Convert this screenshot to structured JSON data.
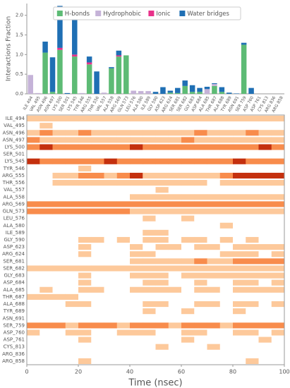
{
  "chart_data": [
    {
      "type": "bar",
      "stacked": true,
      "ylabel": "Interactions Fraction",
      "legend": "upper right",
      "ylim": [
        0,
        2.3
      ],
      "yticks": [
        {
          "value": 0,
          "label": "0.0"
        },
        {
          "value": 0.5,
          "label": "0.5"
        },
        {
          "value": 1,
          "label": "1.0"
        },
        {
          "value": 1.5,
          "label": "1.5"
        },
        {
          "value": 2,
          "label": "2.0"
        }
      ],
      "categories": [
        "ILE 494",
        "VAL 495",
        "ASN 496",
        "ASN 497",
        "LYS 500",
        "SER 501",
        "LYS 545",
        "TYR 546",
        "ARG 555",
        "THR 556",
        "VAL 557",
        "ALA 558",
        "ARG 569",
        "GLN 573",
        "LEU 576",
        "ALA 580",
        "ILE 589",
        "GLY 590",
        "ASP 623",
        "ARG 624",
        "SER 681",
        "SER 682",
        "GLY 683",
        "ASP 684",
        "ALA 685",
        "THR 687",
        "ALA 688",
        "TYR 689",
        "ASN 691",
        "SER 759",
        "ASP 760",
        "ASP 761",
        "CYS 813",
        "ARG 836",
        "ARG 858"
      ],
      "series": [
        {
          "name": "H-bonds",
          "color": "#5dbb75",
          "values": [
            0,
            0,
            1.05,
            0.05,
            1.12,
            0,
            0.95,
            0,
            0.75,
            0,
            0,
            0.65,
            0.95,
            0.98,
            0,
            0,
            0,
            0,
            0,
            0.03,
            0.02,
            0.2,
            0.05,
            0.05,
            0,
            0.2,
            0.05,
            0,
            0,
            1.25,
            0,
            0,
            0,
            0,
            0
          ]
        },
        {
          "name": "Hydrophobic",
          "color": "#c5b3d8",
          "values": [
            0.48,
            0.02,
            0,
            0,
            0,
            0,
            0,
            0.02,
            0,
            0,
            0.03,
            0,
            0,
            0,
            0.08,
            0.07,
            0.07,
            0,
            0,
            0,
            0,
            0,
            0,
            0,
            0.12,
            0.05,
            0,
            0,
            0,
            0,
            0,
            0,
            0,
            0,
            0
          ]
        },
        {
          "name": "Ionic",
          "color": "#e8318a",
          "values": [
            0,
            0,
            0,
            0,
            0.05,
            0,
            0.05,
            0,
            0.05,
            0,
            0,
            0,
            0.03,
            0,
            0,
            0,
            0,
            0,
            0,
            0,
            0,
            0,
            0,
            0,
            0,
            0,
            0,
            0,
            0,
            0,
            0,
            0,
            0,
            0,
            0
          ]
        },
        {
          "name": "Water bridges",
          "color": "#1f6fb4",
          "values": [
            0,
            0,
            0.28,
            0.88,
            1.07,
            0.02,
            0.93,
            0,
            0.15,
            0.57,
            0,
            0.03,
            0.12,
            0,
            0,
            0,
            0,
            0.05,
            0.17,
            0.05,
            0.13,
            0.14,
            0.17,
            0.1,
            0.06,
            0.02,
            0.12,
            0.03,
            0.01,
            0.05,
            0.15,
            0,
            0,
            0,
            0
          ]
        }
      ]
    },
    {
      "type": "heatmap",
      "xlabel": "Time (nsec)",
      "xlim": [
        0,
        100
      ],
      "xticks": [
        0,
        20,
        40,
        60,
        80,
        100
      ],
      "colors": [
        "#ffffff",
        "#fdc99b",
        "#f88c4c",
        "#c4300e"
      ],
      "bins": [
        0,
        5,
        10,
        15,
        20,
        25,
        30,
        35,
        40,
        45,
        50,
        55,
        60,
        65,
        70,
        75,
        80,
        85,
        90,
        95,
        100
      ],
      "rows": [
        "ILE_494",
        "VAL_495",
        "ASN_496",
        "ASN_497",
        "LYS_500",
        "SER_501",
        "LYS_545",
        "TYR_546",
        "ARG_555",
        "THR_556",
        "VAL_557",
        "ALA_558",
        "ARG_569",
        "GLN_573",
        "LEU_576",
        "ALA_580",
        "ILE_589",
        "GLY_590",
        "ASP_623",
        "ARG_624",
        "SER_681",
        "SER_682",
        "GLY_683",
        "ASP_684",
        "ALA_685",
        "THR_687",
        "ALA_688",
        "TYR_689",
        "ASN_691",
        "SER_759",
        "ASP_760",
        "ASP_761",
        "CYS_813",
        "ARG_836",
        "ARG_858"
      ],
      "values": [
        [
          1,
          1,
          1,
          1,
          1,
          1,
          1,
          1,
          1,
          1,
          1,
          1,
          1,
          1,
          1,
          1,
          1,
          1,
          1,
          1
        ],
        [
          0,
          1,
          0,
          0,
          0,
          0,
          0,
          0,
          0,
          0,
          0,
          0,
          0,
          0,
          0,
          0,
          0,
          0,
          0,
          0
        ],
        [
          1,
          2,
          1,
          1,
          2,
          1,
          1,
          1,
          1,
          1,
          1,
          1,
          1,
          2,
          1,
          1,
          1,
          2,
          1,
          1
        ],
        [
          2,
          1,
          1,
          1,
          1,
          1,
          1,
          1,
          1,
          1,
          1,
          1,
          2,
          1,
          1,
          1,
          1,
          1,
          1,
          1
        ],
        [
          2,
          3,
          2,
          2,
          2,
          2,
          2,
          2,
          3,
          2,
          2,
          2,
          2,
          2,
          2,
          2,
          2,
          2,
          3,
          2
        ],
        [
          0,
          0,
          0,
          0,
          0,
          0,
          0,
          0,
          0,
          0,
          0,
          0,
          0,
          0,
          0,
          0,
          0,
          0,
          0,
          0
        ],
        [
          3,
          2,
          2,
          2,
          2,
          2,
          3,
          2,
          2,
          2,
          2,
          2,
          2,
          2,
          2,
          2,
          3,
          2,
          2,
          2
        ],
        [
          0,
          0,
          0,
          0,
          1,
          0,
          0,
          0,
          0,
          0,
          0,
          0,
          0,
          0,
          0,
          0,
          0,
          0,
          0,
          0
        ],
        [
          0,
          0,
          1,
          1,
          2,
          2,
          1,
          2,
          3,
          1,
          1,
          1,
          1,
          1,
          1,
          2,
          3,
          3,
          3,
          3
        ],
        [
          0,
          0,
          1,
          1,
          1,
          1,
          1,
          1,
          1,
          1,
          1,
          1,
          1,
          1,
          0,
          1,
          1,
          1,
          1,
          1
        ],
        [
          0,
          0,
          0,
          0,
          0,
          0,
          0,
          0,
          0,
          0,
          1,
          0,
          0,
          0,
          0,
          0,
          0,
          0,
          0,
          0
        ],
        [
          0,
          0,
          0,
          0,
          0,
          0,
          0,
          0,
          1,
          1,
          1,
          1,
          1,
          1,
          1,
          1,
          1,
          1,
          1,
          1
        ],
        [
          2,
          2,
          2,
          2,
          2,
          2,
          2,
          2,
          2,
          2,
          2,
          2,
          2,
          2,
          2,
          2,
          2,
          2,
          2,
          2
        ],
        [
          2,
          2,
          2,
          2,
          2,
          2,
          2,
          2,
          1,
          1,
          1,
          1,
          1,
          1,
          1,
          1,
          1,
          1,
          1,
          1
        ],
        [
          0,
          0,
          0,
          0,
          0,
          0,
          0,
          0,
          0,
          1,
          0,
          0,
          1,
          0,
          0,
          0,
          0,
          0,
          0,
          0
        ],
        [
          0,
          0,
          0,
          0,
          0,
          0,
          0,
          0,
          0,
          0,
          0,
          0,
          0,
          0,
          0,
          1,
          0,
          0,
          0,
          0
        ],
        [
          0,
          0,
          0,
          0,
          0,
          0,
          0,
          0,
          0,
          1,
          1,
          0,
          0,
          0,
          0,
          0,
          0,
          0,
          0,
          0
        ],
        [
          0,
          0,
          0,
          0,
          1,
          1,
          0,
          1,
          0,
          1,
          1,
          0,
          1,
          1,
          0,
          1,
          0,
          1,
          0,
          0
        ],
        [
          0,
          0,
          0,
          0,
          1,
          0,
          0,
          0,
          1,
          0,
          1,
          1,
          0,
          1,
          1,
          0,
          1,
          1,
          1,
          1
        ],
        [
          0,
          0,
          0,
          0,
          1,
          0,
          0,
          0,
          1,
          1,
          0,
          0,
          0,
          0,
          0,
          1,
          1,
          1,
          0,
          1
        ],
        [
          0,
          0,
          0,
          0,
          0,
          0,
          0,
          0,
          1,
          1,
          1,
          1,
          1,
          2,
          1,
          1,
          2,
          2,
          2,
          2
        ],
        [
          1,
          1,
          1,
          1,
          1,
          1,
          1,
          1,
          1,
          1,
          1,
          1,
          1,
          1,
          1,
          1,
          1,
          1,
          1,
          1
        ],
        [
          0,
          0,
          0,
          0,
          1,
          0,
          0,
          0,
          1,
          1,
          1,
          0,
          1,
          1,
          1,
          1,
          1,
          1,
          1,
          1
        ],
        [
          0,
          0,
          0,
          0,
          1,
          0,
          0,
          0,
          0,
          1,
          1,
          0,
          0,
          1,
          0,
          0,
          1,
          1,
          0,
          1
        ],
        [
          0,
          1,
          0,
          0,
          1,
          1,
          0,
          0,
          1,
          1,
          1,
          1,
          0,
          1,
          1,
          0,
          1,
          1,
          1,
          1
        ],
        [
          1,
          1,
          1,
          1,
          0,
          0,
          0,
          0,
          0,
          0,
          0,
          0,
          0,
          0,
          0,
          0,
          0,
          0,
          0,
          0
        ],
        [
          0,
          0,
          0,
          1,
          1,
          0,
          0,
          0,
          0,
          1,
          1,
          0,
          0,
          1,
          1,
          0,
          1,
          1,
          0,
          1
        ],
        [
          0,
          0,
          0,
          0,
          0,
          0,
          0,
          0,
          0,
          1,
          0,
          0,
          1,
          0,
          0,
          0,
          1,
          0,
          0,
          0
        ],
        [
          0,
          0,
          0,
          0,
          0,
          0,
          0,
          0,
          0,
          0,
          0,
          0,
          0,
          0,
          0,
          0,
          0,
          0,
          0,
          0
        ],
        [
          2,
          2,
          2,
          1,
          2,
          2,
          2,
          1,
          2,
          2,
          2,
          1,
          2,
          2,
          2,
          1,
          2,
          2,
          2,
          2
        ],
        [
          1,
          0,
          0,
          1,
          1,
          0,
          0,
          1,
          1,
          1,
          0,
          0,
          1,
          1,
          0,
          0,
          1,
          1,
          0,
          1
        ],
        [
          0,
          0,
          0,
          0,
          1,
          0,
          0,
          0,
          0,
          0,
          0,
          0,
          1,
          0,
          0,
          0,
          0,
          0,
          1,
          0
        ],
        [
          0,
          0,
          0,
          0,
          0,
          0,
          0,
          0,
          0,
          0,
          1,
          0,
          0,
          0,
          1,
          0,
          0,
          0,
          0,
          0
        ],
        [
          0,
          0,
          0,
          0,
          0,
          0,
          0,
          0,
          0,
          0,
          0,
          0,
          0,
          0,
          0,
          0,
          0,
          0,
          0,
          0
        ],
        [
          0,
          0,
          0,
          0,
          1,
          0,
          0,
          0,
          0,
          0,
          0,
          0,
          0,
          0,
          0,
          0,
          0,
          1,
          0,
          0
        ]
      ]
    }
  ]
}
